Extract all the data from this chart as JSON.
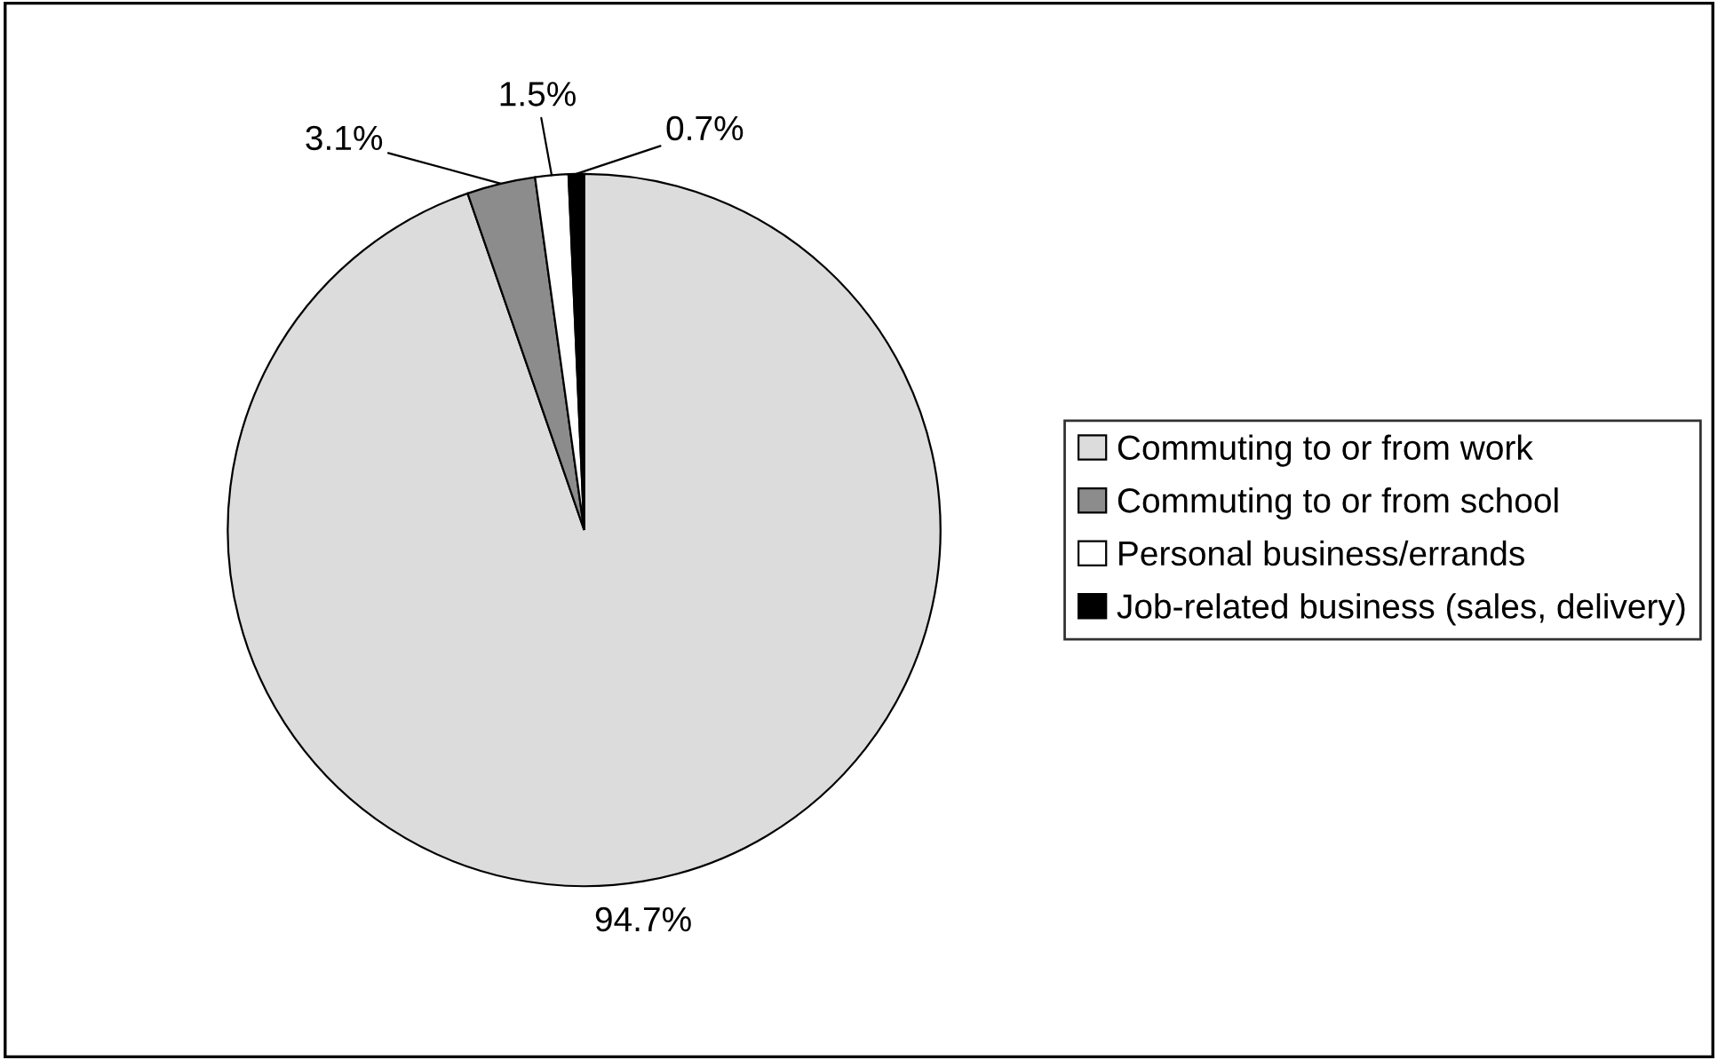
{
  "chart_data": {
    "type": "pie",
    "categories": [
      "Commuting to or from work",
      "Commuting to or from school",
      "Personal business/errands",
      "Job-related business (sales, delivery)"
    ],
    "values": [
      94.7,
      3.1,
      1.5,
      0.7
    ],
    "colors": [
      "#dcdcdc",
      "#8c8c8c",
      "#ffffff",
      "#000000"
    ],
    "value_labels": [
      "94.7%",
      "3.1%",
      "1.5%",
      "0.7%"
    ],
    "legend": "right"
  }
}
